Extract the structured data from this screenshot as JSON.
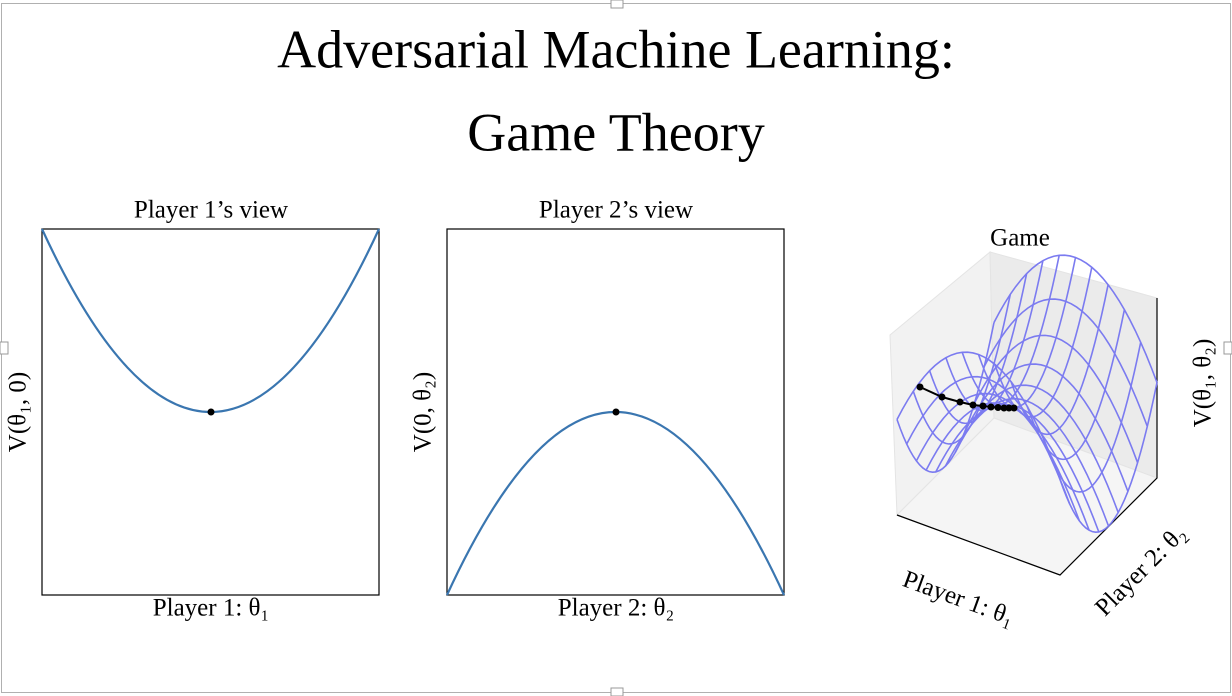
{
  "title": [
    "Adversarial Machine Learning:",
    "Game Theory"
  ],
  "panels": [
    {
      "title": "Player 1’s view",
      "xlabel": "Player 1: θ₁",
      "ylabel": "V(θ₁, 0)"
    },
    {
      "title": "Player 2’s view",
      "xlabel": "Player 2: θ₂",
      "ylabel": "V(0, θ₂)"
    },
    {
      "title": "Game",
      "xlabel": "Player 1: θ₁",
      "ylabel": "Player 2: θ₂",
      "zlabel": "V(θ₁, θ₂)"
    }
  ]
}
